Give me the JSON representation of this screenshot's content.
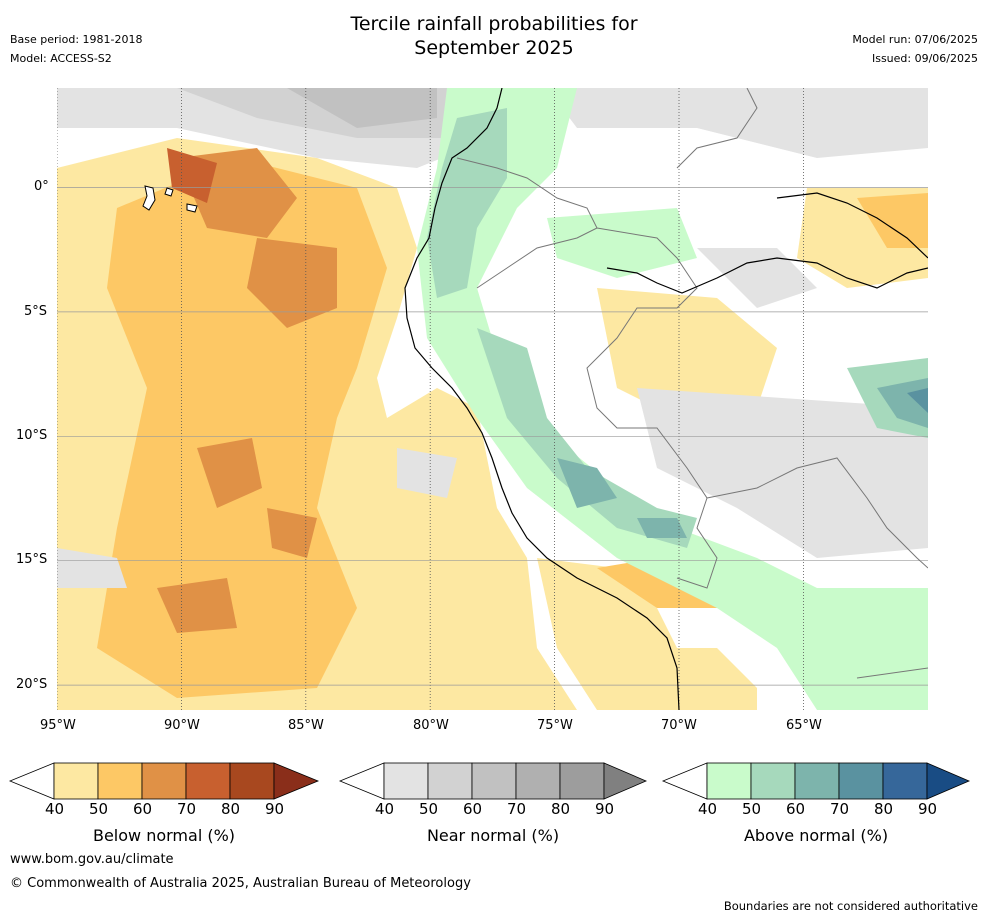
{
  "header": {
    "title_line1": "Tercile rainfall probabilities for",
    "title_line2": "September 2025",
    "base_period": "Base period: 1981-2018",
    "model": "Model: ACCESS-S2",
    "model_run": "Model run: 07/06/2025",
    "issued": "Issued: 09/06/2025"
  },
  "map": {
    "lat_labels": [
      "0°",
      "5°S",
      "10°S",
      "15°S",
      "20°S"
    ],
    "lon_labels": [
      "95°W",
      "90°W",
      "85°W",
      "80°W",
      "75°W",
      "70°W",
      "65°W"
    ],
    "lon_range": [
      -95,
      -61
    ],
    "lat_range": [
      -21,
      4
    ]
  },
  "legend": {
    "ticks": [
      "40",
      "50",
      "60",
      "70",
      "80",
      "90"
    ],
    "below": {
      "label": "Below normal (%)",
      "colors": [
        "#fde8a2",
        "#fdc865",
        "#e09146",
        "#c8602f",
        "#a8481f",
        "#8a2e1a"
      ]
    },
    "near": {
      "label": "Near normal (%)",
      "colors": [
        "#e3e3e3",
        "#d2d2d2",
        "#c1c1c1",
        "#b0b0b0",
        "#9d9d9d",
        "#808080"
      ]
    },
    "above": {
      "label": "Above normal (%)",
      "colors": [
        "#c9fbcb",
        "#a6d9bc",
        "#7db4ac",
        "#5a92a0",
        "#36679a",
        "#194c84"
      ]
    }
  },
  "footer": {
    "url": "www.bom.gov.au/climate",
    "copyright": "© Commonwealth of Australia 2025, Australian Bureau of Meteorology",
    "disclaimer": "Boundaries are not considered authoritative"
  }
}
